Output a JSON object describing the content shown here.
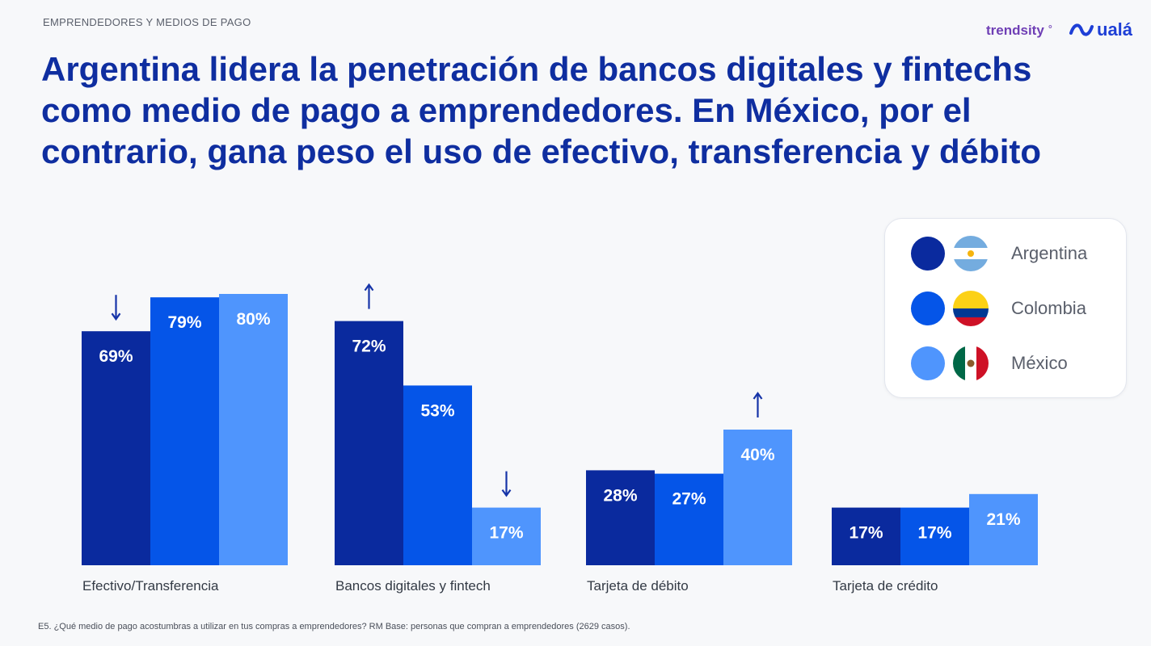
{
  "header": {
    "kicker": "EMPRENDEDORES Y MEDIOS DE PAGO",
    "brand_trendsity": "trendsity",
    "brand_uala": "ualá",
    "title": "Argentina lidera la penetración de bancos digitales y fintechs como medio de pago a emprendedores. En México, por el contrario, gana peso el uso de efectivo, transferencia y débito"
  },
  "chart_data": {
    "type": "bar",
    "categories": [
      "Efectivo/Transferencia",
      "Bancos digitales y fintech",
      "Tarjeta de débito",
      "Tarjeta de crédito"
    ],
    "series": [
      {
        "name": "Argentina",
        "values": [
          69,
          72,
          28,
          17
        ],
        "labels": [
          "69%",
          "72%",
          "28%",
          "17%"
        ]
      },
      {
        "name": "Colombia",
        "values": [
          79,
          53,
          27,
          17
        ],
        "labels": [
          "79%",
          "53%",
          "27%",
          "17%"
        ]
      },
      {
        "name": "México",
        "values": [
          80,
          17,
          40,
          21
        ],
        "labels": [
          "80%",
          "17%",
          "40%",
          "21%"
        ]
      }
    ],
    "colors": [
      "#0a2a9e",
      "#0555e8",
      "#4f95fd"
    ],
    "ylim": [
      0,
      85
    ],
    "grid": false,
    "legend_position": "top-right",
    "annotations": [
      {
        "series": 0,
        "category": 0,
        "arrow": "down"
      },
      {
        "series": 0,
        "category": 1,
        "arrow": "up"
      },
      {
        "series": 2,
        "category": 1,
        "arrow": "down"
      },
      {
        "series": 2,
        "category": 2,
        "arrow": "up"
      }
    ]
  },
  "legend": {
    "items": [
      {
        "label": "Argentina",
        "color": "#0a2a9e",
        "flag": "argentina-flag"
      },
      {
        "label": "Colombia",
        "color": "#0555e8",
        "flag": "colombia-flag"
      },
      {
        "label": "México",
        "color": "#4f95fd",
        "flag": "mexico-flag"
      }
    ]
  },
  "footnote": "E5. ¿Qué medio de pago acostumbras a utilizar en tus compras a emprendedores? RM Base: personas que compran a emprendedores (2629 casos)."
}
